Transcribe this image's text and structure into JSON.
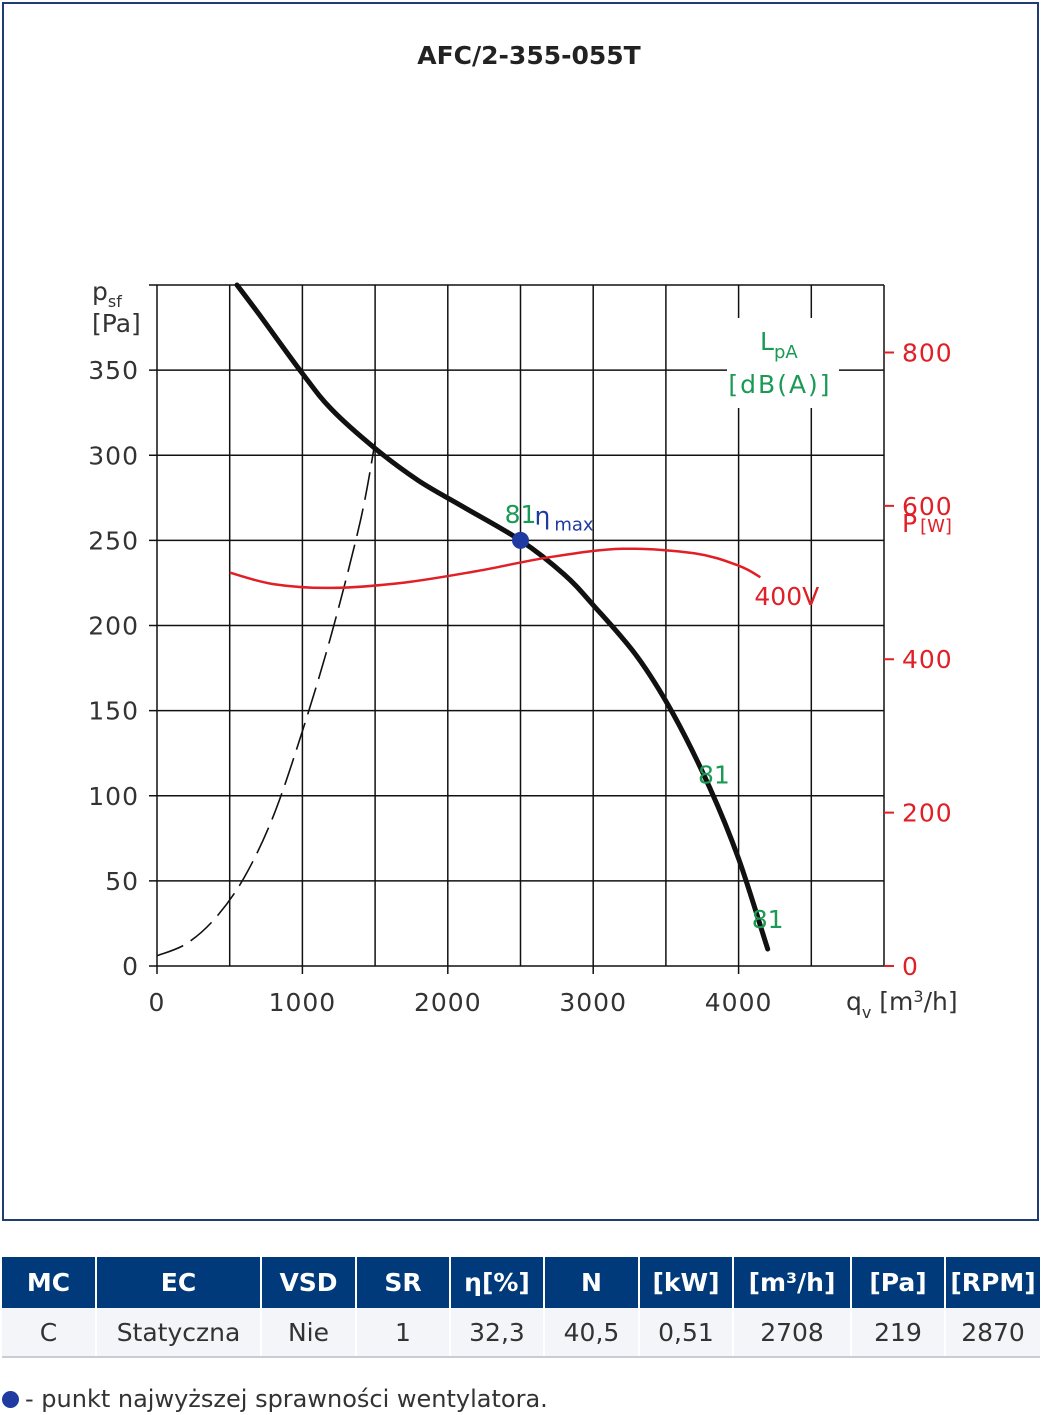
{
  "chart_data": {
    "type": "line",
    "title": "AFC/2-355-055T",
    "xlabel": "q",
    "xlabel_sub": "v",
    "xlabel_unit_pre": " [m",
    "xlabel_unit_sup": "3",
    "xlabel_unit_post": "/h]",
    "ylabel": "p",
    "ylabel_sub": "sf",
    "ylabel_unit": "[Pa]",
    "xlim": [
      0,
      5000
    ],
    "ylim": [
      0,
      400
    ],
    "x_ticks": [
      "0",
      "1000",
      "2000",
      "3000",
      "4000"
    ],
    "x_tick_values": [
      0,
      1000,
      2000,
      3000,
      4000
    ],
    "y_ticks": [
      "0",
      "50",
      "100",
      "150",
      "200",
      "250",
      "300",
      "350"
    ],
    "y_tick_values": [
      0,
      50,
      100,
      150,
      200,
      250,
      300,
      350
    ],
    "y2_label": "P",
    "y2_unit": "[W]",
    "y2lim": [
      0,
      888
    ],
    "y2_ticks": [
      "0",
      "200",
      "400",
      "600",
      "800"
    ],
    "y2_tick_values": [
      0,
      200,
      400,
      600,
      800
    ],
    "lpa_label": "L",
    "lpa_sub": "pA",
    "lpa_unit": "[dB(A)]",
    "grid": true,
    "series": [
      {
        "key": "pressure",
        "axis": "left",
        "color": "#111111",
        "points": [
          [
            550,
            400
          ],
          [
            700,
            383
          ],
          [
            1000,
            348
          ],
          [
            1200,
            327
          ],
          [
            1500,
            304
          ],
          [
            1800,
            285
          ],
          [
            2100,
            270
          ],
          [
            2500,
            250
          ],
          [
            2800,
            230
          ],
          [
            3000,
            212
          ],
          [
            3300,
            182
          ],
          [
            3550,
            148
          ],
          [
            3800,
            105
          ],
          [
            4000,
            63
          ],
          [
            4200,
            10
          ]
        ]
      },
      {
        "key": "system-curve",
        "axis": "left",
        "style": "dashed",
        "color": "#111111",
        "points": [
          [
            0,
            6
          ],
          [
            200,
            13
          ],
          [
            400,
            28
          ],
          [
            600,
            52
          ],
          [
            800,
            88
          ],
          [
            1000,
            138
          ],
          [
            1200,
            195
          ],
          [
            1400,
            262
          ],
          [
            1500,
            308
          ]
        ]
      },
      {
        "key": "power",
        "axis": "right",
        "name": "400V",
        "color": "#e01f26",
        "points": [
          [
            500,
            513
          ],
          [
            800,
            498
          ],
          [
            1200,
            493
          ],
          [
            1700,
            500
          ],
          [
            2200,
            515
          ],
          [
            2700,
            533
          ],
          [
            3200,
            544
          ],
          [
            3700,
            538
          ],
          [
            4000,
            522
          ],
          [
            4150,
            507
          ]
        ]
      }
    ],
    "annotations": [
      {
        "text": "81",
        "x": 2500,
        "y": 265,
        "color": "#1a9a55"
      },
      {
        "text": "81",
        "x": 3830,
        "y": 112,
        "color": "#1a9a55"
      },
      {
        "text": "81",
        "x": 4200,
        "y": 27,
        "color": "#1a9a55"
      }
    ],
    "eta_max": {
      "label": "η",
      "sub": "max",
      "x": 2500,
      "y": 250,
      "color": "#1f3aa0"
    }
  },
  "table": {
    "headers": [
      "MC",
      "EC",
      "VSD",
      "SR",
      "η[%]",
      "N",
      "[kW]",
      "[m³/h]",
      "[Pa]",
      "[RPM]"
    ],
    "row": [
      "C",
      "Statyczna",
      "Nie",
      "1",
      "32,3",
      "40,5",
      "0,51",
      "2708",
      "219",
      "2870"
    ]
  },
  "footnote": "- punkt najwyższej sprawności wentylatora."
}
